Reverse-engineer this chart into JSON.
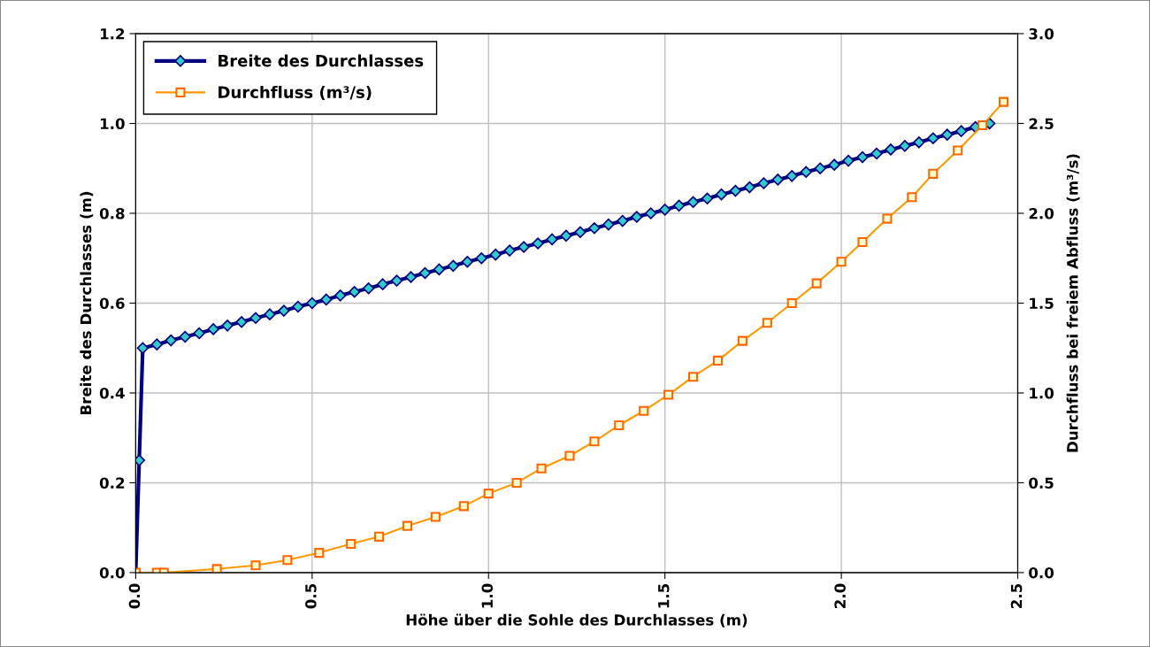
{
  "chart_data": {
    "type": "line",
    "xlabel": "Höhe über die Sohle des Durchlasses (m)",
    "ylabel": "Breite des Durchlasses (m)",
    "y2label": "Durchfluss bei freiem Abfluss (m³/s)",
    "xlim": [
      0,
      2.5
    ],
    "xticks": [
      {
        "value": 0,
        "label": "0.0"
      },
      {
        "value": 0.5,
        "label": "0.5"
      },
      {
        "value": 1,
        "label": "1.0"
      },
      {
        "value": 1.5,
        "label": "1.5"
      },
      {
        "value": 2,
        "label": "2.0"
      },
      {
        "value": 2.5,
        "label": "2.5"
      }
    ],
    "ylim": [
      0,
      1.2
    ],
    "yticks": [
      {
        "value": 0,
        "label": "0.0"
      },
      {
        "value": 0.2,
        "label": "0.2"
      },
      {
        "value": 0.4,
        "label": "0.4"
      },
      {
        "value": 0.6,
        "label": "0.6"
      },
      {
        "value": 0.8,
        "label": "0.8"
      },
      {
        "value": 1,
        "label": "1.0"
      },
      {
        "value": 1.2,
        "label": "1.2"
      }
    ],
    "y2lim": [
      0,
      3
    ],
    "y2ticks": [
      {
        "value": 0,
        "label": "0.0"
      },
      {
        "value": 0.5,
        "label": "0.5"
      },
      {
        "value": 1,
        "label": "1.0"
      },
      {
        "value": 1.5,
        "label": "1.5"
      },
      {
        "value": 2,
        "label": "2.0"
      },
      {
        "value": 2.5,
        "label": "2.5"
      },
      {
        "value": 3,
        "label": "3.0"
      }
    ],
    "grid": true,
    "legend": "top left",
    "series": [
      {
        "name": "Breite des Durchlasses",
        "color": "#000080",
        "marker": "diamond",
        "axis": "y",
        "x": [
          0,
          0.01,
          0.02,
          0.06,
          0.1,
          0.14,
          0.18,
          0.22,
          0.26,
          0.3,
          0.34,
          0.38,
          0.42,
          0.46,
          0.5,
          0.54,
          0.58,
          0.62,
          0.66,
          0.7,
          0.74,
          0.78,
          0.82,
          0.86,
          0.9,
          0.94,
          0.98,
          1.02,
          1.06,
          1.1,
          1.14,
          1.18,
          1.22,
          1.26,
          1.3,
          1.34,
          1.38,
          1.42,
          1.46,
          1.5,
          1.54,
          1.58,
          1.62,
          1.66,
          1.7,
          1.74,
          1.78,
          1.82,
          1.86,
          1.9,
          1.94,
          1.98,
          2.02,
          2.06,
          2.1,
          2.14,
          2.18,
          2.22,
          2.26,
          2.3,
          2.34,
          2.38,
          2.42
        ],
        "values": [
          0,
          0.25,
          0.5,
          0.508,
          0.517,
          0.525,
          0.533,
          0.542,
          0.55,
          0.558,
          0.567,
          0.575,
          0.583,
          0.592,
          0.6,
          0.608,
          0.617,
          0.625,
          0.633,
          0.642,
          0.65,
          0.658,
          0.667,
          0.675,
          0.683,
          0.692,
          0.7,
          0.708,
          0.717,
          0.725,
          0.733,
          0.742,
          0.75,
          0.758,
          0.767,
          0.775,
          0.783,
          0.792,
          0.8,
          0.808,
          0.817,
          0.825,
          0.833,
          0.842,
          0.85,
          0.858,
          0.867,
          0.875,
          0.883,
          0.892,
          0.9,
          0.908,
          0.917,
          0.925,
          0.933,
          0.942,
          0.95,
          0.958,
          0.967,
          0.975,
          0.983,
          0.992,
          1.0
        ]
      },
      {
        "name": "Durchfluss (m³/s)",
        "color": "#ff9900",
        "marker": "square",
        "axis": "y2",
        "x": [
          0,
          0.06,
          0.08,
          0.23,
          0.34,
          0.43,
          0.52,
          0.61,
          0.69,
          0.77,
          0.85,
          0.93,
          1.0,
          1.08,
          1.15,
          1.23,
          1.3,
          1.37,
          1.44,
          1.51,
          1.58,
          1.65,
          1.72,
          1.79,
          1.86,
          1.93,
          2.0,
          2.06,
          2.13,
          2.2,
          2.26,
          2.33,
          2.4,
          2.46
        ],
        "values": [
          0,
          0,
          0,
          0.02,
          0.04,
          0.07,
          0.11,
          0.16,
          0.2,
          0.26,
          0.31,
          0.37,
          0.44,
          0.5,
          0.58,
          0.65,
          0.73,
          0.82,
          0.9,
          0.99,
          1.09,
          1.18,
          1.29,
          1.39,
          1.5,
          1.61,
          1.73,
          1.84,
          1.97,
          2.09,
          2.22,
          2.35,
          2.49,
          2.62
        ]
      }
    ]
  }
}
